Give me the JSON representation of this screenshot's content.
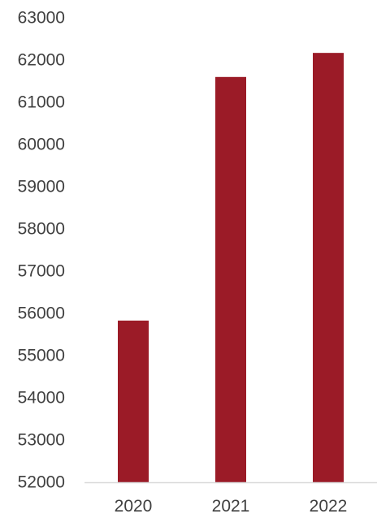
{
  "chart_data": {
    "type": "bar",
    "title": "",
    "xlabel": "",
    "ylabel": "",
    "categories": [
      "2020",
      "2021",
      "2022"
    ],
    "values": [
      55830,
      61600,
      62170
    ],
    "ylim": [
      52000,
      63000
    ],
    "yticks": [
      52000,
      53000,
      54000,
      55000,
      56000,
      57000,
      58000,
      59000,
      60000,
      61000,
      62000,
      63000
    ],
    "ytick_labels": [
      "52000",
      "53000",
      "54000",
      "55000",
      "56000",
      "57000",
      "58000",
      "59000",
      "60000",
      "61000",
      "62000",
      "63000"
    ],
    "grid": false,
    "legend": "none",
    "bar_color": "#9b1b27",
    "axis_color": "#d9d9d9",
    "text_color": "#404040"
  }
}
